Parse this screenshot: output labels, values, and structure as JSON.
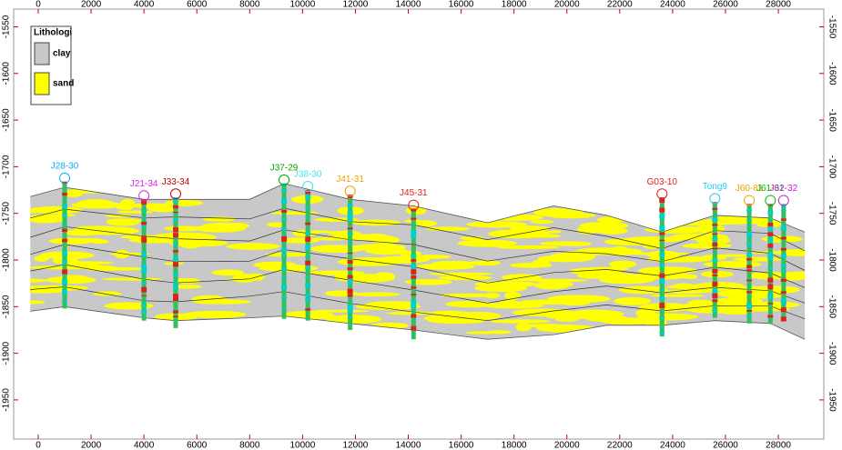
{
  "chart_data": {
    "type": "section",
    "xlim": [
      -930,
      29720
    ],
    "ylim": [
      -1992,
      -1531
    ],
    "xticks": [
      0,
      2000,
      4000,
      6000,
      8000,
      10000,
      12000,
      14000,
      16000,
      18000,
      20000,
      22000,
      24000,
      26000,
      28000
    ],
    "yticks": [
      -1550,
      -1600,
      -1650,
      -1700,
      -1750,
      -1800,
      -1850,
      -1900,
      -1950
    ],
    "legend": {
      "title": "Lithologi",
      "entries": [
        {
          "name": "clay",
          "color": "#c8c8c8"
        },
        {
          "name": "sand",
          "color": "#ffff00"
        }
      ]
    },
    "surfaces": {
      "x": [
        -300,
        1000,
        4000,
        5200,
        8000,
        9300,
        11800,
        14200,
        17000,
        19500,
        21500,
        23600,
        25600,
        27700,
        29000
      ],
      "top": [
        -1732,
        -1722,
        -1735,
        -1735,
        -1735,
        -1718,
        -1735,
        -1742,
        -1760,
        -1742,
        -1752,
        -1770,
        -1752,
        -1755,
        -1770
      ],
      "bottom": [
        -1855,
        -1850,
        -1862,
        -1865,
        -1862,
        -1860,
        -1868,
        -1875,
        -1885,
        -1880,
        -1870,
        -1870,
        -1865,
        -1868,
        -1885
      ]
    },
    "wells": [
      {
        "name": "J28-30",
        "x": 1000,
        "top": -1716,
        "bottom": -1852,
        "color": "#00b0f0"
      },
      {
        "name": "J21-34",
        "x": 4000,
        "top": -1735,
        "bottom": -1865,
        "color": "#e020e0"
      },
      {
        "name": "J33-34",
        "x": 5200,
        "top": -1733,
        "bottom": -1873,
        "color": "#c00000"
      },
      {
        "name": "J37-29",
        "x": 9300,
        "top": -1718,
        "bottom": -1863,
        "color": "#00a000"
      },
      {
        "name": "J38-30",
        "x": 10200,
        "top": -1725,
        "bottom": -1865,
        "color": "#40e0f0"
      },
      {
        "name": "J41-31",
        "x": 11800,
        "top": -1730,
        "bottom": -1875,
        "color": "#f0a000"
      },
      {
        "name": "J45-31",
        "x": 14200,
        "top": -1745,
        "bottom": -1885,
        "color": "#e02020"
      },
      {
        "name": "G03-10",
        "x": 23600,
        "top": -1733,
        "bottom": -1882,
        "color": "#e02020"
      },
      {
        "name": "Tong9",
        "x": 25600,
        "top": -1738,
        "bottom": -1862,
        "color": "#20d0f0"
      },
      {
        "name": "J60-81",
        "x": 26900,
        "top": -1740,
        "bottom": -1868,
        "color": "#f0a000"
      },
      {
        "name": "J61-31",
        "x": 27700,
        "top": -1740,
        "bottom": -1868,
        "color": "#00c000"
      },
      {
        "name": "J62-32",
        "x": 28200,
        "top": -1740,
        "bottom": -1865,
        "color": "#d020d0"
      }
    ]
  }
}
